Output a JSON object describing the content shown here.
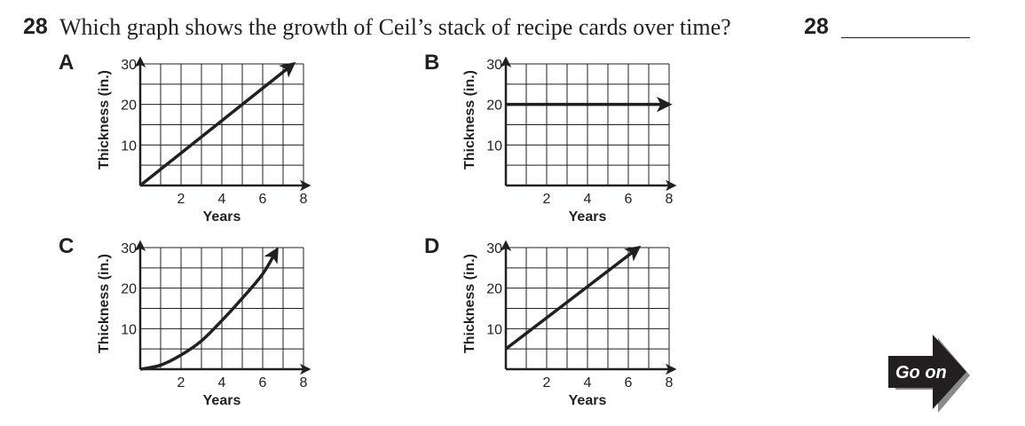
{
  "question": {
    "number": "28",
    "text": "Which graph shows the growth of Ceil’s stack of recipe cards over time?",
    "answer_number": "28"
  },
  "go_on": {
    "label": "Go on"
  },
  "chart_data": [
    {
      "type": "line",
      "panel": "A",
      "xlabel": "Years",
      "ylabel": "Thickness (in.)",
      "xlim": [
        0,
        8
      ],
      "ylim": [
        0,
        30
      ],
      "xticks": [
        2,
        4,
        6,
        8
      ],
      "yticks": [
        10,
        20,
        30
      ],
      "grid": true,
      "shape": "linear",
      "points": [
        [
          0,
          0
        ],
        [
          7.5,
          30
        ]
      ]
    },
    {
      "type": "line",
      "panel": "B",
      "xlabel": "Years",
      "ylabel": "Thickness (in.)",
      "xlim": [
        0,
        8
      ],
      "ylim": [
        0,
        30
      ],
      "xticks": [
        2,
        4,
        6,
        8
      ],
      "yticks": [
        10,
        20,
        30
      ],
      "grid": true,
      "shape": "linear",
      "points": [
        [
          0,
          20
        ],
        [
          8,
          20
        ]
      ]
    },
    {
      "type": "line",
      "panel": "C",
      "xlabel": "Years",
      "ylabel": "Thickness (in.)",
      "xlim": [
        0,
        8
      ],
      "ylim": [
        0,
        30
      ],
      "xticks": [
        2,
        4,
        6,
        8
      ],
      "yticks": [
        10,
        20,
        30
      ],
      "grid": true,
      "shape": "curve",
      "points": [
        [
          0,
          0
        ],
        [
          1,
          1
        ],
        [
          2,
          3.5
        ],
        [
          3,
          7
        ],
        [
          4,
          12
        ],
        [
          5,
          17.5
        ],
        [
          6,
          23.5
        ],
        [
          6.7,
          29.5
        ]
      ]
    },
    {
      "type": "line",
      "panel": "D",
      "xlabel": "Years",
      "ylabel": "Thickness (in.)",
      "xlim": [
        0,
        8
      ],
      "ylim": [
        0,
        30
      ],
      "xticks": [
        2,
        4,
        6,
        8
      ],
      "yticks": [
        10,
        20,
        30
      ],
      "grid": true,
      "shape": "linear",
      "points": [
        [
          0,
          5
        ],
        [
          6.5,
          30
        ]
      ]
    }
  ]
}
